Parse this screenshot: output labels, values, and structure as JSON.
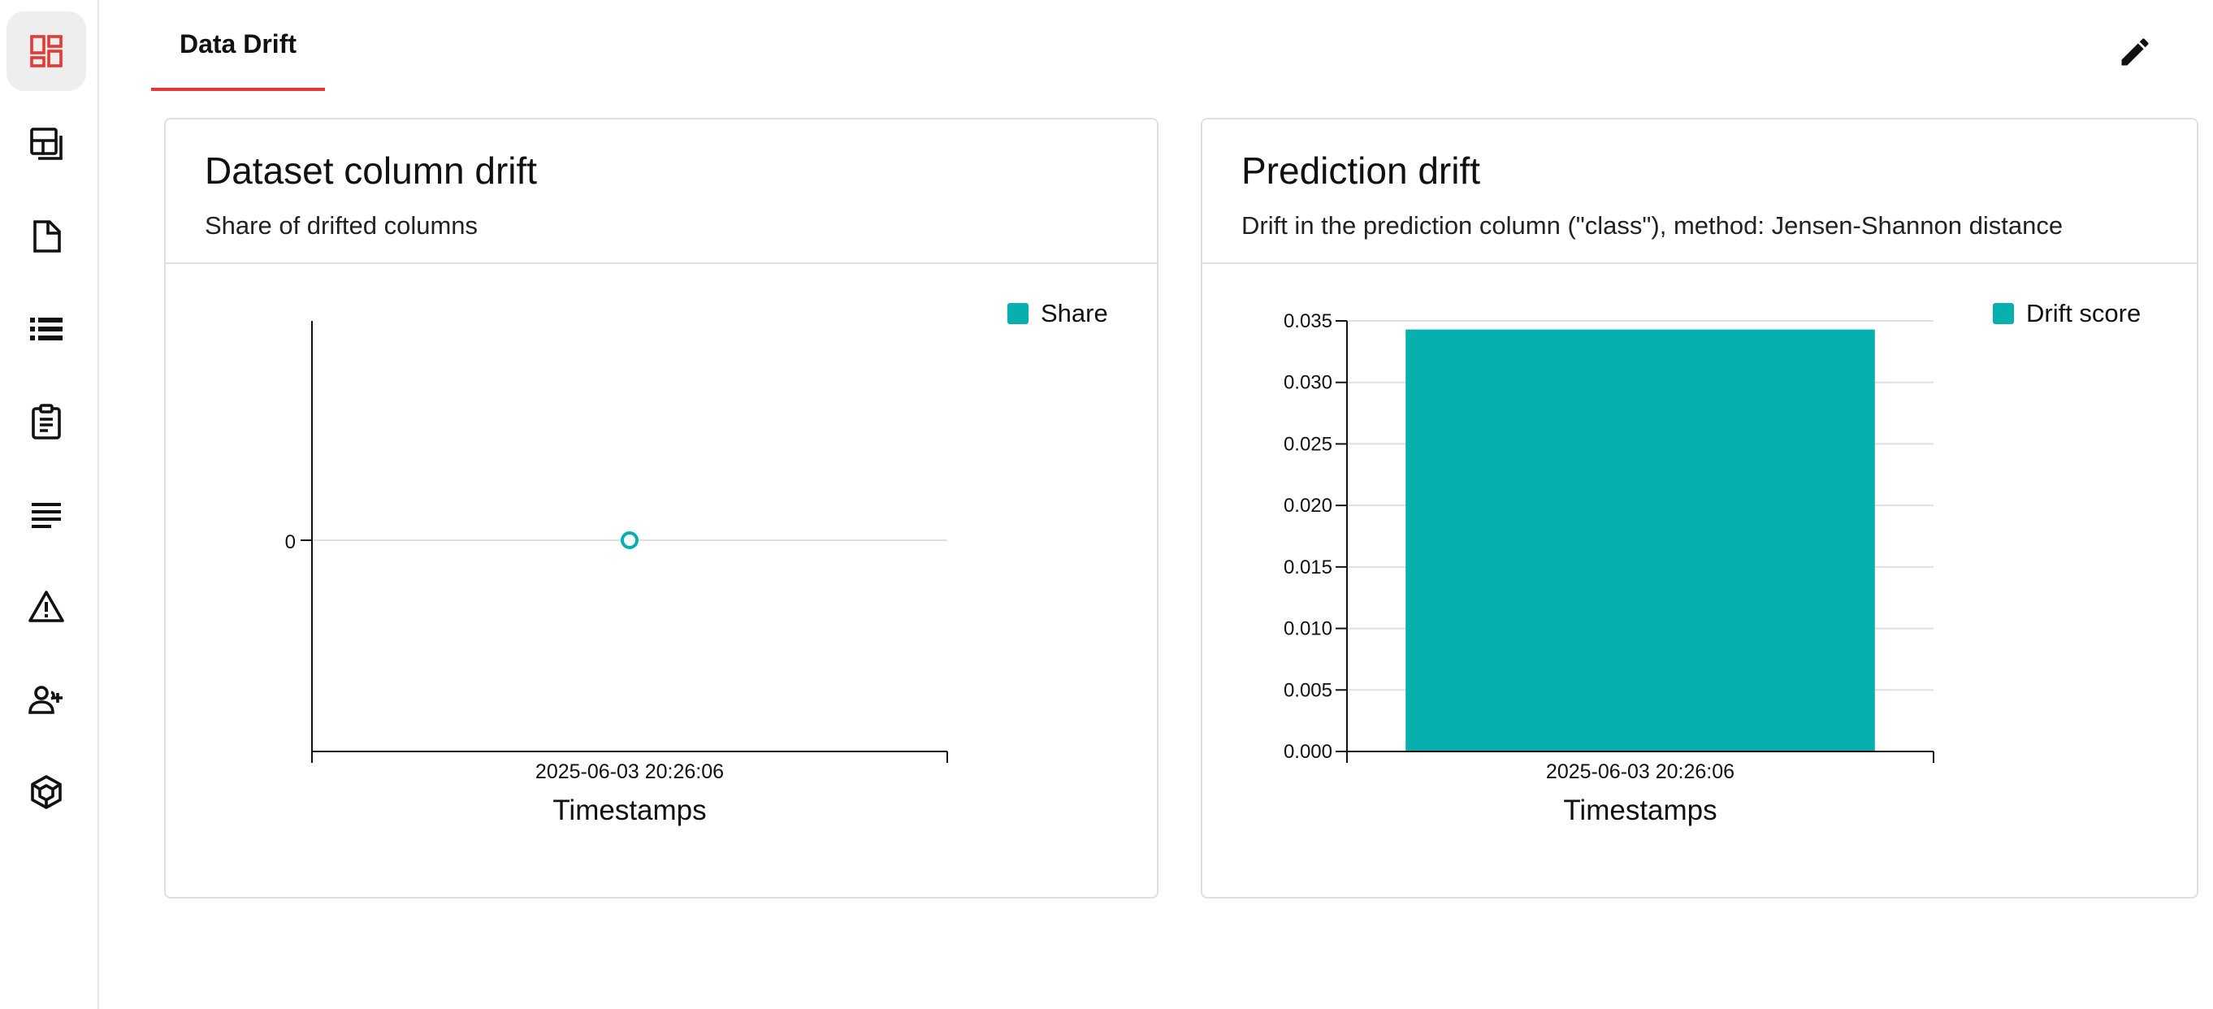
{
  "tabs": [
    {
      "label": "Data Drift",
      "active": true
    }
  ],
  "sidebar": {
    "items": [
      {
        "name": "dashboard",
        "active": true
      },
      {
        "name": "reports"
      },
      {
        "name": "snapshots"
      },
      {
        "name": "datasets"
      },
      {
        "name": "tests"
      },
      {
        "name": "logs"
      },
      {
        "name": "alerts"
      },
      {
        "name": "team"
      },
      {
        "name": "models"
      }
    ]
  },
  "colors": {
    "accent": "#e53935",
    "series": "#07b0ae"
  },
  "panels": [
    {
      "title": "Dataset column drift",
      "subtitle": "Share of drifted columns",
      "legend": "Share",
      "xlabel": "Timestamps"
    },
    {
      "title": "Prediction drift",
      "subtitle": "Drift in the prediction column (\"class\"), method: Jensen-Shannon distance",
      "legend": "Drift score",
      "xlabel": "Timestamps"
    }
  ],
  "chart_data": [
    {
      "type": "scatter",
      "title": "Dataset column drift",
      "subtitle": "Share of drifted columns",
      "xlabel": "Timestamps",
      "ylabel": "",
      "x": [
        "2025-06-03 20:26:06"
      ],
      "series": [
        {
          "name": "Share",
          "values": [
            0
          ]
        }
      ],
      "y_ticks": [
        "0"
      ],
      "legend": "top-right",
      "grid": true
    },
    {
      "type": "bar",
      "title": "Prediction drift",
      "subtitle": "Drift in the prediction column (\"class\"), method: Jensen-Shannon distance",
      "xlabel": "Timestamps",
      "ylabel": "",
      "categories": [
        "2025-06-03 20:26:06"
      ],
      "series": [
        {
          "name": "Drift score",
          "values": [
            0.0343
          ]
        }
      ],
      "ylim": [
        0,
        0.035
      ],
      "y_ticks": [
        "0.000",
        "0.005",
        "0.010",
        "0.015",
        "0.020",
        "0.025",
        "0.030",
        "0.035"
      ],
      "legend": "top-right",
      "grid": true
    }
  ]
}
